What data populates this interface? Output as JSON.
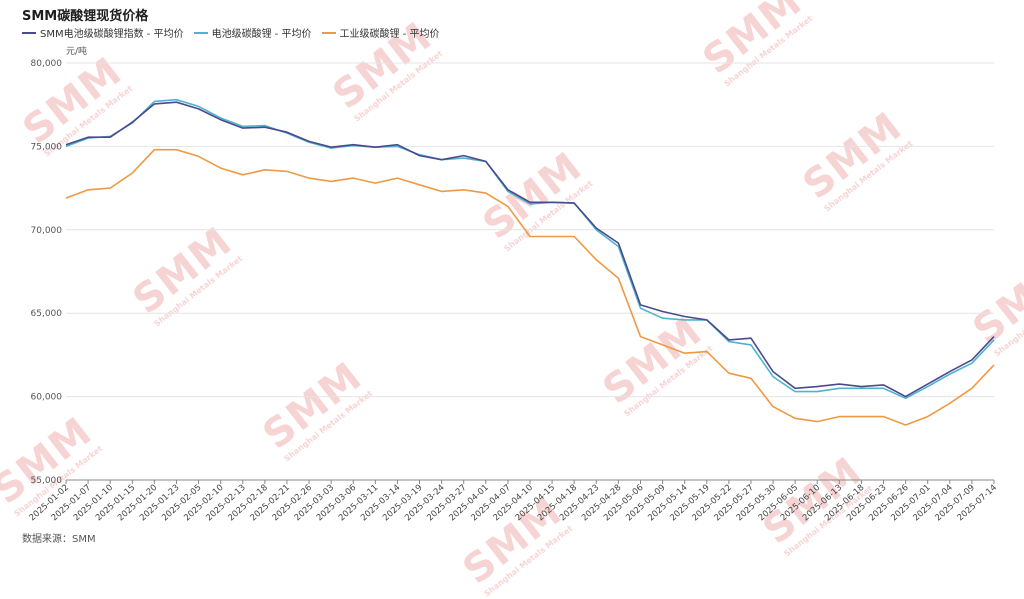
{
  "title": "SMM碳酸锂现货价格",
  "unit": "元/吨",
  "source": "数据来源：SMM",
  "watermark": {
    "big": "SMM",
    "small": "Shanghai Metals Market"
  },
  "legend": [
    {
      "label": "SMM电池级碳酸锂指数 - 平均价",
      "color": "#4a4a8f"
    },
    {
      "label": "电池级碳酸锂 - 平均价",
      "color": "#4fb3cf"
    },
    {
      "label": "工业级碳酸锂 - 平均价",
      "color": "#ee9a45"
    }
  ],
  "chart_data": {
    "type": "line",
    "title": "SMM碳酸锂现货价格",
    "ylabel": "元/吨",
    "xlabel": "",
    "ylim": [
      55000,
      80000
    ],
    "yticks": [
      55000,
      60000,
      65000,
      70000,
      75000,
      80000
    ],
    "ytick_labels": [
      "55,000",
      "60,000",
      "65,000",
      "70,000",
      "75,000",
      "80,000"
    ],
    "grid": "horizontal",
    "legend_position": "top-left",
    "xtick_labels": [
      "2025-01-02",
      "2025-01-07",
      "2025-01-10",
      "2025-01-15",
      "2025-01-20",
      "2025-01-23",
      "2025-02-05",
      "2025-02-10",
      "2025-02-13",
      "2025-02-18",
      "2025-02-21",
      "2025-02-26",
      "2025-03-03",
      "2025-03-06",
      "2025-03-11",
      "2025-03-14",
      "2025-03-19",
      "2025-03-24",
      "2025-03-27",
      "2025-04-01",
      "2025-04-07",
      "2025-04-10",
      "2025-04-15",
      "2025-04-18",
      "2025-04-23",
      "2025-04-28",
      "2025-05-06",
      "2025-05-09",
      "2025-05-14",
      "2025-05-19",
      "2025-05-22",
      "2025-05-27",
      "2025-05-30",
      "2025-06-05",
      "2025-06-10",
      "2025-06-13",
      "2025-06-18",
      "2025-06-23",
      "2025-06-26",
      "2025-07-01",
      "2025-07-04",
      "2025-07-09",
      "2025-07-14"
    ],
    "series": [
      {
        "name": "SMM电池级碳酸锂指数 - 平均价",
        "color": "#4a4a8f",
        "values": [
          75100,
          75550,
          75550,
          76450,
          77550,
          77650,
          77250,
          76600,
          76100,
          76150,
          75850,
          75300,
          74950,
          75100,
          74950,
          75100,
          74450,
          74200,
          74450,
          74100,
          72400,
          71650,
          71650,
          71600,
          70100,
          69200,
          65500,
          65100,
          64800,
          64600,
          63400,
          63500,
          61500,
          60500,
          60600,
          60750,
          60600,
          60700,
          60000,
          60750,
          61500,
          62200,
          63600
        ]
      },
      {
        "name": "电池级碳酸锂 - 平均价",
        "color": "#4fb3cf",
        "values": [
          75000,
          75500,
          75600,
          76400,
          77700,
          77800,
          77400,
          76700,
          76200,
          76250,
          75800,
          75250,
          74900,
          75050,
          74950,
          75000,
          74500,
          74200,
          74300,
          74100,
          72300,
          71550,
          71650,
          71600,
          70000,
          69000,
          65300,
          64700,
          64600,
          64600,
          63300,
          63100,
          61200,
          60300,
          60300,
          60500,
          60500,
          60500,
          59900,
          60600,
          61350,
          62000,
          63400
        ]
      },
      {
        "name": "工业级碳酸锂 - 平均价",
        "color": "#ee9a45",
        "values": [
          71900,
          72400,
          72500,
          73400,
          74800,
          74800,
          74400,
          73700,
          73300,
          73600,
          73500,
          73100,
          72900,
          73100,
          72800,
          73100,
          72700,
          72300,
          72400,
          72200,
          71400,
          69600,
          69600,
          69600,
          68200,
          67100,
          63600,
          63100,
          62600,
          62700,
          61400,
          61100,
          59400,
          58700,
          58500,
          58800,
          58800,
          58800,
          58300,
          58800,
          59600,
          60500,
          61900
        ]
      }
    ]
  }
}
